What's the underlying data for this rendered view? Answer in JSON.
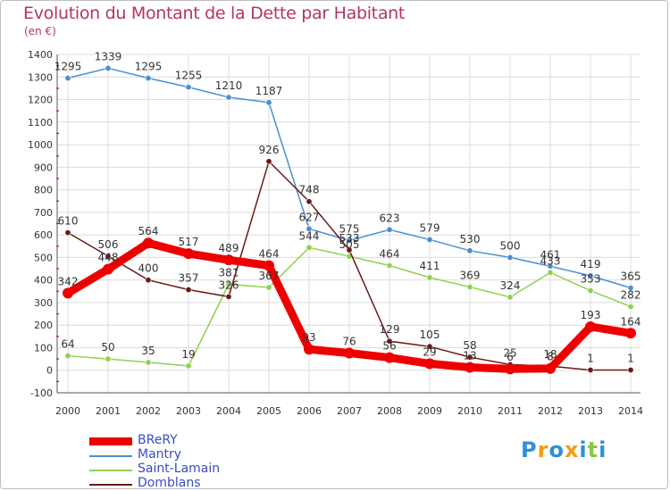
{
  "header": {
    "title": "Evolution du Montant de la Dette par Habitant",
    "subtitle": "(en €)"
  },
  "logo": {
    "text": "Proxiti",
    "letters": [
      {
        "ch": "P",
        "color": "#2e8fd6"
      },
      {
        "ch": "r",
        "color": "#f29a1a"
      },
      {
        "ch": "o",
        "color": "#2e8fd6"
      },
      {
        "ch": "x",
        "color": "#f29a1a"
      },
      {
        "ch": "i",
        "color": "#2e8fd6"
      },
      {
        "ch": "t",
        "color": "#8cc63f"
      },
      {
        "ch": "i",
        "color": "#2e8fd6"
      }
    ]
  },
  "chart_data": {
    "type": "line",
    "title": "Evolution du Montant de la Dette par Habitant",
    "ylabel": "(en €)",
    "xlabel": "",
    "x": [
      "2000",
      "2001",
      "2002",
      "2003",
      "2004",
      "2005",
      "2006",
      "2007",
      "2008",
      "2009",
      "2010",
      "2011",
      "2012",
      "2013",
      "2014"
    ],
    "ylim": [
      -100,
      1400
    ],
    "yticks": [
      -100,
      0,
      100,
      200,
      300,
      400,
      500,
      600,
      700,
      800,
      900,
      1000,
      1100,
      1200,
      1300,
      1400
    ],
    "grid": true,
    "legend_position": "bottom-left",
    "series": [
      {
        "name": "BReRY",
        "color": "#ee0000",
        "emphasis": true,
        "values": [
          342,
          448,
          564,
          517,
          489,
          464,
          93,
          76,
          56,
          29,
          13,
          6,
          8,
          193,
          164
        ],
        "labels": [
          "342",
          "448",
          "564",
          "517",
          "489",
          "464",
          "93",
          "76",
          "56",
          "29",
          "13",
          "6",
          "8",
          "193",
          "164"
        ]
      },
      {
        "name": "Mantry",
        "color": "#4a8fd0",
        "emphasis": false,
        "values": [
          1295,
          1339,
          1295,
          1255,
          1210,
          1187,
          627,
          575,
          623,
          579,
          530,
          500,
          461,
          419,
          365
        ],
        "labels": [
          "1295",
          "1339",
          "1295",
          "1255",
          "1210",
          "1187",
          "627",
          "575",
          "623",
          "579",
          "530",
          "500",
          "461",
          "419",
          "365"
        ]
      },
      {
        "name": "Saint-Lamain",
        "color": "#8fd14f",
        "emphasis": false,
        "values": [
          64,
          50,
          35,
          19,
          381,
          367,
          544,
          505,
          464,
          411,
          369,
          324,
          433,
          353,
          282
        ],
        "labels": [
          "64",
          "50",
          "35",
          "19",
          "381",
          "367",
          "544",
          "505",
          "464",
          "411",
          "369",
          "324",
          "433",
          "353",
          "282"
        ]
      },
      {
        "name": "Domblans",
        "color": "#6b1a1a",
        "emphasis": false,
        "values": [
          610,
          506,
          400,
          357,
          326,
          926,
          748,
          533,
          129,
          105,
          58,
          25,
          18,
          1,
          1
        ],
        "labels": [
          "610",
          "506",
          "400",
          "357",
          "326",
          "926",
          "748",
          "533",
          "129",
          "105",
          "58",
          "25",
          "18",
          "1",
          "1"
        ]
      }
    ]
  }
}
